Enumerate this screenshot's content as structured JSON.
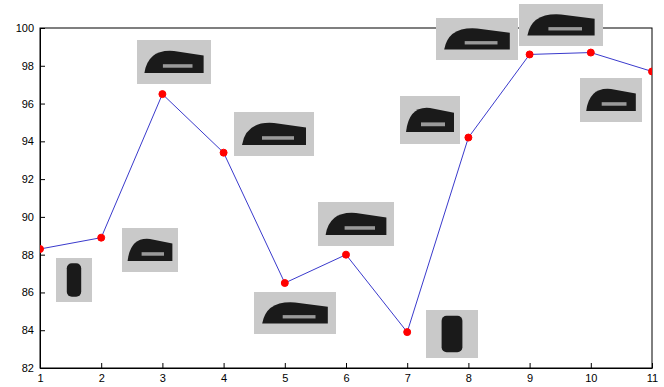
{
  "chart_data": {
    "type": "line",
    "x": [
      1,
      2,
      3,
      4,
      5,
      6,
      7,
      8,
      9,
      10,
      11
    ],
    "series": [
      {
        "color": "#3a3acc",
        "marker": "circle",
        "line_style": "solid",
        "values": [
          88.3,
          88.9,
          96.5,
          93.4,
          86.5,
          88.0,
          83.9,
          94.2,
          98.6,
          98.7,
          97.7
        ]
      }
    ],
    "xlim": [
      1,
      11
    ],
    "xticks": [
      1,
      2,
      3,
      4,
      5,
      6,
      7,
      8,
      9,
      10,
      11
    ],
    "ylim": [
      82,
      100
    ],
    "yticks": [
      82,
      84,
      86,
      88,
      90,
      92,
      94,
      96,
      98,
      100
    ],
    "grid": false
  }
}
